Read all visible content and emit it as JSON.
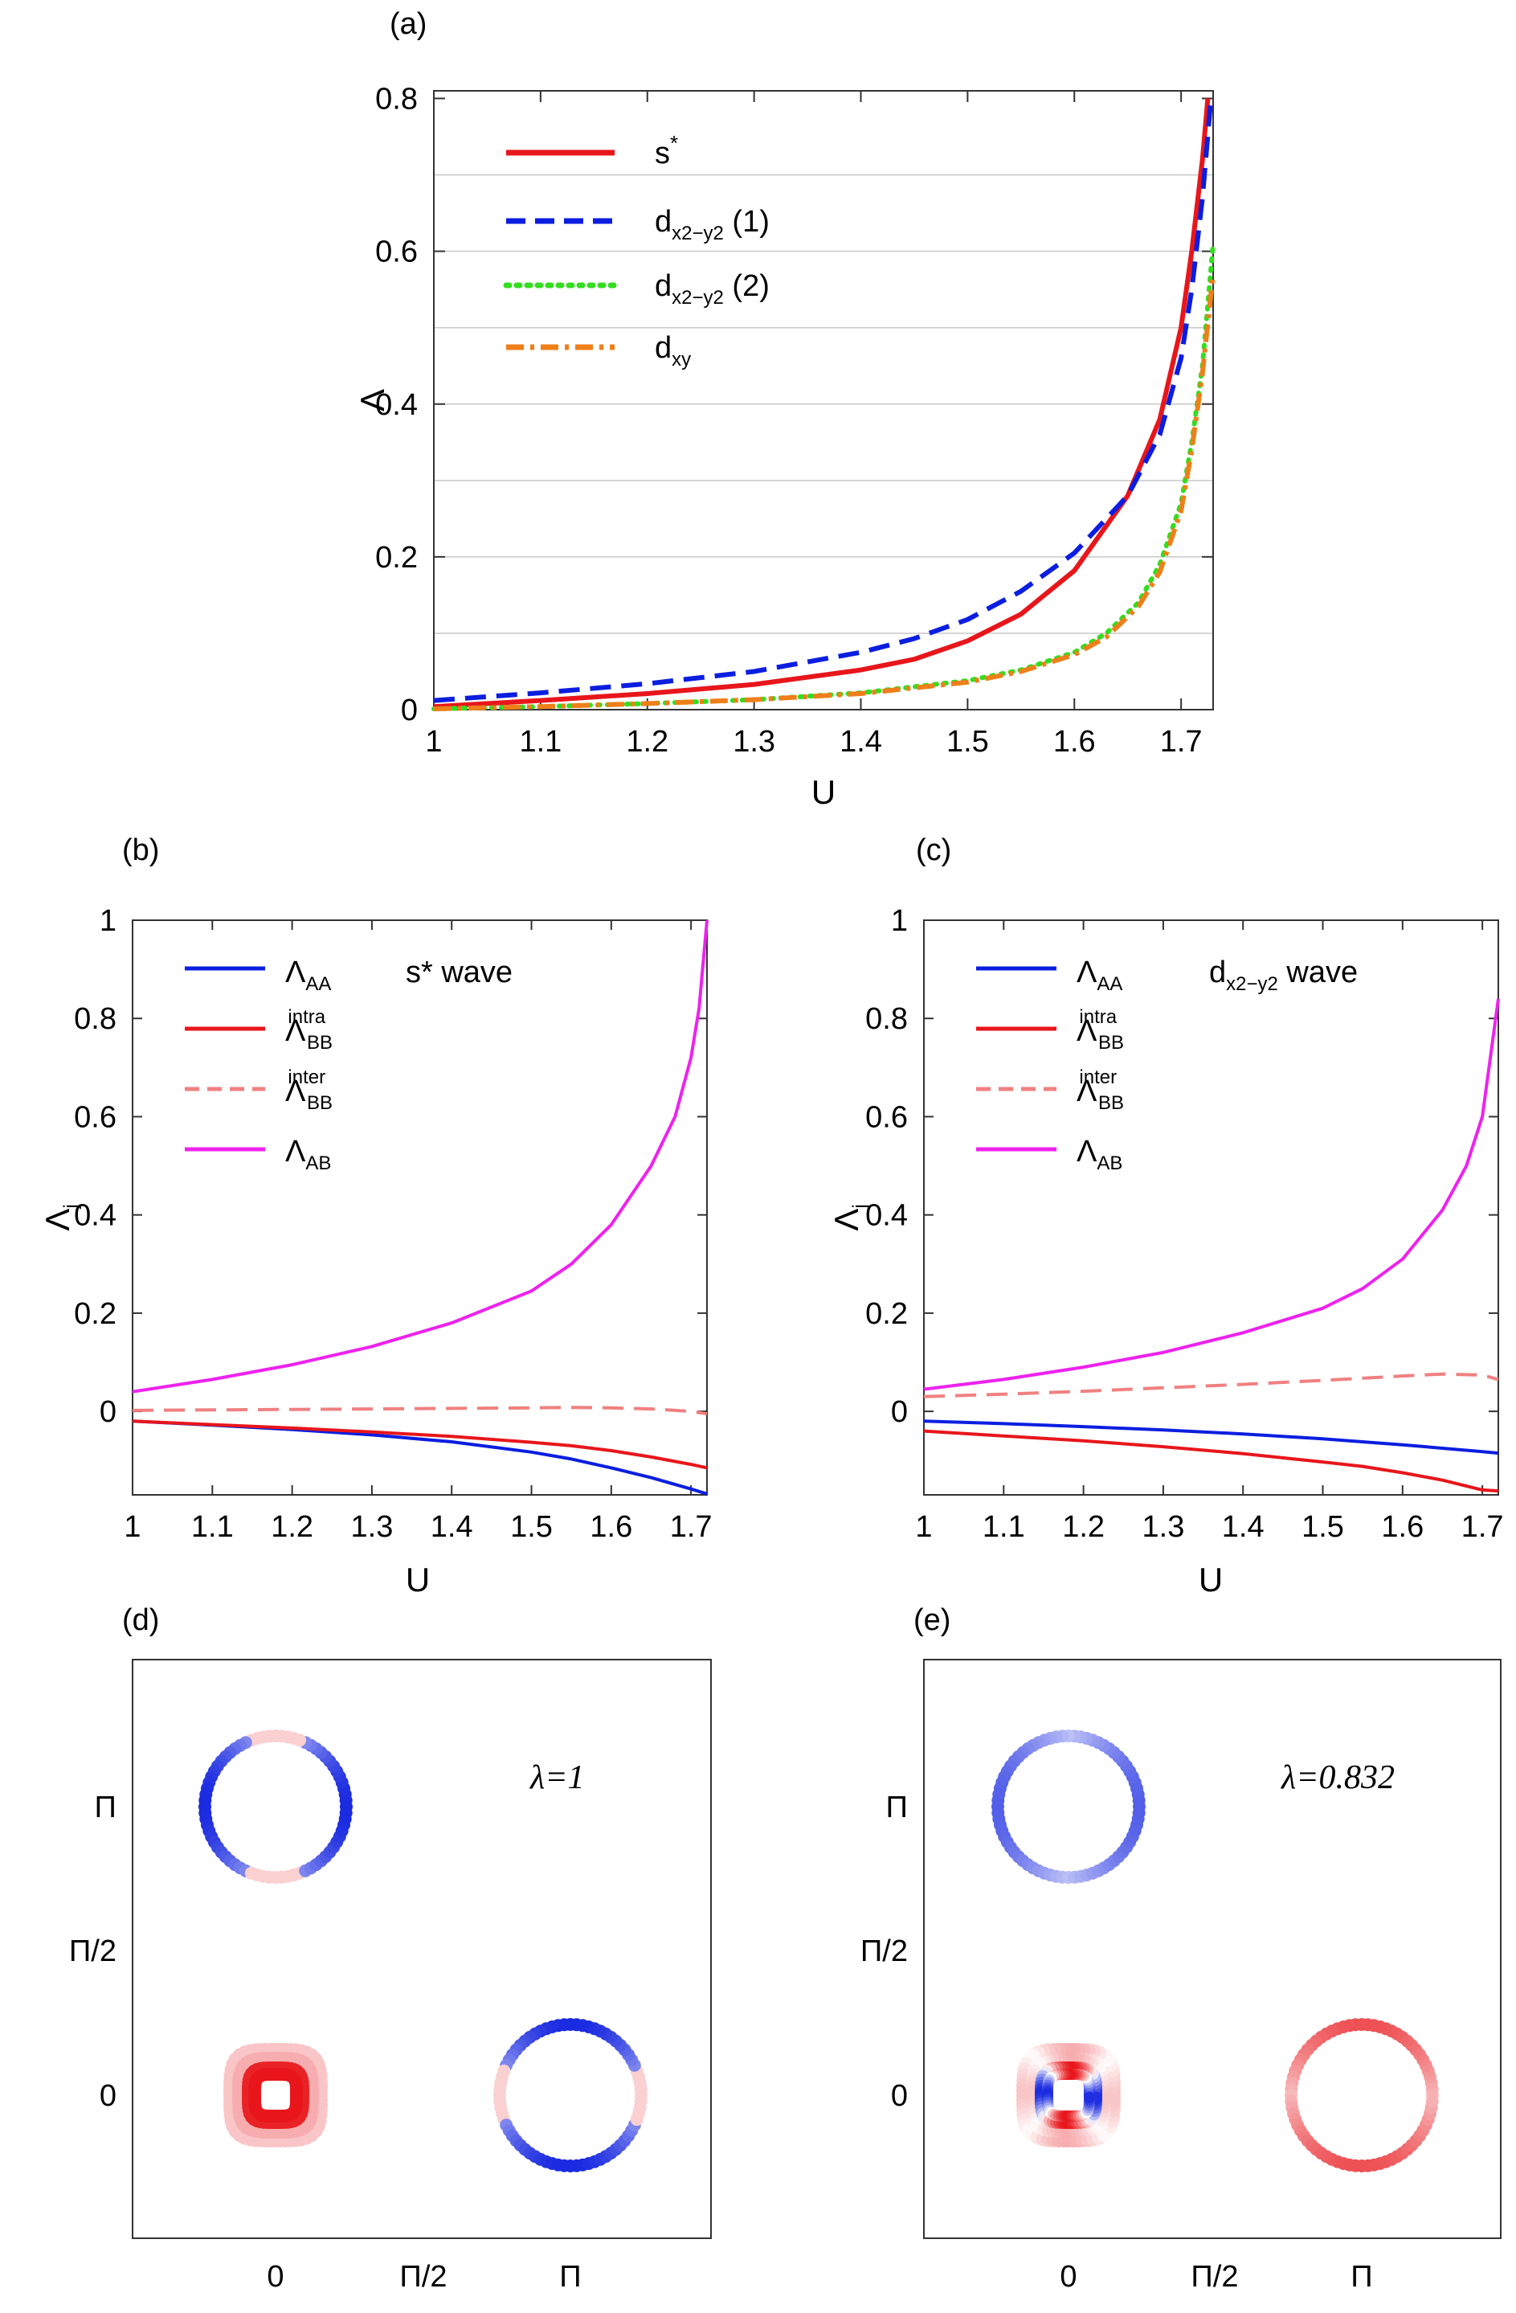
{
  "colors": {
    "red": "#e8161b",
    "blue": "#0b1ee0",
    "green": "#33dd1f",
    "orange": "#ef7f1a",
    "pink": "#f08080",
    "magenta": "#ee22ee",
    "grid": "#c8c8c8"
  },
  "chart_data": [
    {
      "id": "a",
      "panel_label": "(a)",
      "type": "line",
      "xlabel": "U",
      "ylabel": "Λ",
      "xlim": [
        1,
        1.73
      ],
      "ylim": [
        0,
        0.81
      ],
      "xticks": [
        1,
        1.1,
        1.2,
        1.3,
        1.4,
        1.5,
        1.6,
        1.7
      ],
      "xtick_labels": [
        "1",
        "1.1",
        "1.2",
        "1.3",
        "1.4",
        "1.5",
        "1.6",
        "1.7"
      ],
      "yticks": [
        0,
        0.2,
        0.4,
        0.6,
        0.8
      ],
      "ytick_labels": [
        "0",
        "0.2",
        "0.4",
        "0.6",
        "0.8"
      ],
      "hgrid": [
        0.1,
        0.2,
        0.3,
        0.4,
        0.5,
        0.6,
        0.7
      ],
      "legend_position": "top-left",
      "series": [
        {
          "name": "s",
          "sup": "*",
          "sub": "",
          "suffix": "",
          "color": "red",
          "dash": "solid",
          "x": [
            1,
            1.1,
            1.2,
            1.3,
            1.4,
            1.45,
            1.5,
            1.55,
            1.6,
            1.65,
            1.68,
            1.7,
            1.71,
            1.72,
            1.725
          ],
          "y": [
            0.004,
            0.012,
            0.021,
            0.033,
            0.052,
            0.066,
            0.09,
            0.125,
            0.182,
            0.28,
            0.38,
            0.5,
            0.6,
            0.72,
            0.8
          ]
        },
        {
          "name": "d",
          "sup": "",
          "sub": "x2−y2",
          "suffix": " (1)",
          "color": "blue",
          "dash": "dashed",
          "x": [
            1,
            1.1,
            1.2,
            1.3,
            1.4,
            1.45,
            1.5,
            1.55,
            1.6,
            1.65,
            1.68,
            1.7,
            1.71,
            1.72,
            1.728
          ],
          "y": [
            0.012,
            0.022,
            0.034,
            0.05,
            0.075,
            0.093,
            0.118,
            0.155,
            0.205,
            0.28,
            0.36,
            0.46,
            0.55,
            0.67,
            0.8
          ]
        },
        {
          "name": "d",
          "sup": "",
          "sub": "x2−y2",
          "suffix": " (2)",
          "color": "green",
          "dash": "dotted",
          "x": [
            1,
            1.1,
            1.2,
            1.3,
            1.4,
            1.5,
            1.55,
            1.6,
            1.63,
            1.66,
            1.68,
            1.7,
            1.71,
            1.72,
            1.73
          ],
          "y": [
            0.001,
            0.004,
            0.008,
            0.013,
            0.022,
            0.038,
            0.052,
            0.075,
            0.1,
            0.14,
            0.19,
            0.27,
            0.35,
            0.45,
            0.61
          ]
        },
        {
          "name": "d",
          "sup": "",
          "sub": "xy",
          "suffix": "",
          "color": "orange",
          "dash": "dashdot",
          "x": [
            1,
            1.1,
            1.2,
            1.3,
            1.4,
            1.5,
            1.55,
            1.6,
            1.63,
            1.66,
            1.68,
            1.7,
            1.71,
            1.72,
            1.73
          ],
          "y": [
            0.001,
            0.004,
            0.008,
            0.013,
            0.021,
            0.036,
            0.05,
            0.072,
            0.095,
            0.135,
            0.18,
            0.26,
            0.34,
            0.44,
            0.57
          ]
        }
      ]
    },
    {
      "id": "b",
      "panel_label": "(b)",
      "type": "line",
      "xlabel": "U",
      "ylabel": "Λ",
      "ylabel_sub": "j",
      "annotation": "s* wave",
      "xlim": [
        1,
        1.72
      ],
      "ylim": [
        -0.17,
        1.0
      ],
      "xticks": [
        1,
        1.1,
        1.2,
        1.3,
        1.4,
        1.5,
        1.6,
        1.7
      ],
      "xtick_labels": [
        "1",
        "1.1",
        "1.2",
        "1.3",
        "1.4",
        "1.5",
        "1.6",
        "1.7"
      ],
      "yticks": [
        0,
        0.2,
        0.4,
        0.6,
        0.8,
        1
      ],
      "ytick_labels": [
        "0",
        "0.2",
        "0.4",
        "0.6",
        "0.8",
        "1"
      ],
      "legend_position": "top-left",
      "series": [
        {
          "name": "Λ",
          "sub": "AA",
          "sup": "",
          "color": "blue",
          "dash": "solid",
          "x": [
            1,
            1.1,
            1.2,
            1.3,
            1.4,
            1.5,
            1.55,
            1.6,
            1.65,
            1.7,
            1.72
          ],
          "y": [
            -0.02,
            -0.028,
            -0.037,
            -0.048,
            -0.062,
            -0.083,
            -0.097,
            -0.115,
            -0.135,
            -0.158,
            -0.168
          ]
        },
        {
          "name": "Λ",
          "sub": "BB",
          "sup": "intra",
          "color": "red",
          "dash": "solid",
          "x": [
            1,
            1.1,
            1.2,
            1.3,
            1.4,
            1.5,
            1.55,
            1.6,
            1.65,
            1.7,
            1.72
          ],
          "y": [
            -0.02,
            -0.027,
            -0.034,
            -0.042,
            -0.051,
            -0.063,
            -0.07,
            -0.08,
            -0.093,
            -0.108,
            -0.115
          ]
        },
        {
          "name": "Λ",
          "sub": "BB",
          "sup": "inter",
          "color": "pink",
          "dash": "dashed",
          "x": [
            1,
            1.1,
            1.2,
            1.3,
            1.4,
            1.5,
            1.55,
            1.6,
            1.65,
            1.7,
            1.72
          ],
          "y": [
            0.002,
            0.003,
            0.004,
            0.005,
            0.006,
            0.007,
            0.008,
            0.007,
            0.005,
            0.0,
            -0.005
          ]
        },
        {
          "name": "Λ",
          "sub": "AB",
          "sup": "",
          "color": "magenta",
          "dash": "solid",
          "x": [
            1,
            1.1,
            1.2,
            1.3,
            1.4,
            1.5,
            1.55,
            1.6,
            1.65,
            1.68,
            1.7,
            1.71,
            1.72
          ],
          "y": [
            0.04,
            0.065,
            0.095,
            0.132,
            0.18,
            0.245,
            0.3,
            0.38,
            0.5,
            0.6,
            0.72,
            0.82,
            1.0
          ]
        }
      ]
    },
    {
      "id": "c",
      "panel_label": "(c)",
      "type": "line",
      "xlabel": "U",
      "ylabel": "Λ",
      "ylabel_sub": "j",
      "annotation": "d",
      "annotation_sub": "x2−y2",
      "annotation_suffix": " wave",
      "xlim": [
        1,
        1.72
      ],
      "ylim": [
        -0.17,
        1.0
      ],
      "xticks": [
        1,
        1.1,
        1.2,
        1.3,
        1.4,
        1.5,
        1.6,
        1.7
      ],
      "xtick_labels": [
        "1",
        "1.1",
        "1.2",
        "1.3",
        "1.4",
        "1.5",
        "1.6",
        "1.7"
      ],
      "yticks": [
        0,
        0.2,
        0.4,
        0.6,
        0.8,
        1
      ],
      "ytick_labels": [
        "0",
        "0.2",
        "0.4",
        "0.6",
        "0.8",
        "1"
      ],
      "legend_position": "top-left",
      "series": [
        {
          "name": "Λ",
          "sub": "AA",
          "sup": "",
          "color": "blue",
          "dash": "solid",
          "x": [
            1,
            1.1,
            1.2,
            1.3,
            1.4,
            1.5,
            1.6,
            1.7,
            1.72
          ],
          "y": [
            -0.02,
            -0.025,
            -0.031,
            -0.038,
            -0.046,
            -0.056,
            -0.068,
            -0.082,
            -0.085
          ]
        },
        {
          "name": "Λ",
          "sub": "BB",
          "sup": "intra",
          "color": "red",
          "dash": "solid",
          "x": [
            1,
            1.1,
            1.2,
            1.3,
            1.4,
            1.5,
            1.55,
            1.6,
            1.65,
            1.7,
            1.72
          ],
          "y": [
            -0.04,
            -0.05,
            -0.06,
            -0.072,
            -0.086,
            -0.103,
            -0.112,
            -0.125,
            -0.14,
            -0.16,
            -0.162
          ]
        },
        {
          "name": "Λ",
          "sub": "BB",
          "sup": "inter",
          "color": "pink",
          "dash": "dashed",
          "x": [
            1,
            1.1,
            1.2,
            1.3,
            1.4,
            1.5,
            1.6,
            1.65,
            1.7,
            1.72
          ],
          "y": [
            0.03,
            0.035,
            0.041,
            0.048,
            0.055,
            0.063,
            0.072,
            0.076,
            0.074,
            0.065
          ]
        },
        {
          "name": "Λ",
          "sub": "AB",
          "sup": "",
          "color": "magenta",
          "dash": "solid",
          "x": [
            1,
            1.1,
            1.2,
            1.3,
            1.4,
            1.5,
            1.55,
            1.6,
            1.65,
            1.68,
            1.7,
            1.72
          ],
          "y": [
            0.045,
            0.065,
            0.09,
            0.12,
            0.16,
            0.21,
            0.25,
            0.31,
            0.41,
            0.5,
            0.6,
            0.84
          ]
        }
      ]
    },
    {
      "id": "d",
      "panel_label": "(d)",
      "type": "scatter",
      "annotation": "λ=1",
      "xtick_labels": [
        "0",
        "Π/2",
        "Π"
      ],
      "ytick_labels": [
        "0",
        "Π/2",
        "Π"
      ]
    },
    {
      "id": "e",
      "panel_label": "(e)",
      "type": "scatter",
      "annotation": "λ=0.832",
      "xtick_labels": [
        "0",
        "Π/2",
        "Π"
      ],
      "ytick_labels": [
        "0",
        "Π/2",
        "Π"
      ]
    }
  ]
}
